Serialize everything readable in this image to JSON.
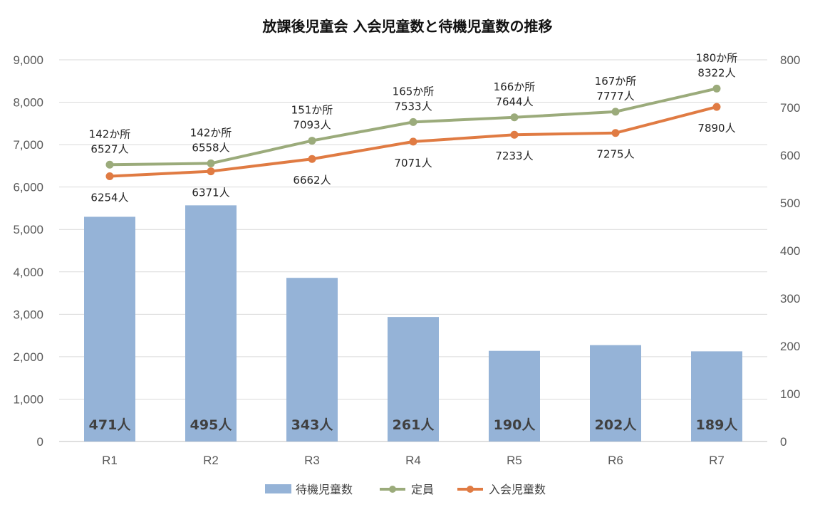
{
  "chart_data": {
    "type": "bar",
    "title": "放課後児童会 入会児童数と待機児童数の推移",
    "categories": [
      "R1",
      "R2",
      "R3",
      "R4",
      "R5",
      "R6",
      "R7"
    ],
    "y_left": {
      "ticks": [
        "0",
        "1,000",
        "2,000",
        "3,000",
        "4,000",
        "5,000",
        "6,000",
        "7,000",
        "8,000",
        "9,000"
      ],
      "ylim": [
        0,
        9000
      ]
    },
    "y_right": {
      "ticks": [
        "0",
        "100",
        "200",
        "300",
        "400",
        "500",
        "600",
        "700",
        "800"
      ],
      "ylim": [
        0,
        800
      ]
    },
    "grid": true,
    "legend_position": "bottom",
    "series": [
      {
        "name": "待機児童数",
        "kind": "bar",
        "axis": "right",
        "color": "#95b3d7",
        "values": [
          471,
          495,
          343,
          261,
          190,
          202,
          189
        ],
        "labels": [
          "471人",
          "495人",
          "343人",
          "261人",
          "190人",
          "202人",
          "189人"
        ]
      },
      {
        "name": "定員",
        "kind": "line",
        "axis": "left",
        "color": "#9bab7b",
        "values": [
          6527,
          6558,
          7093,
          7533,
          7644,
          7777,
          8322
        ],
        "sites": [
          "142か所",
          "142か所",
          "151か所",
          "165か所",
          "166か所",
          "167か所",
          "180か所"
        ],
        "labels": [
          "6527人",
          "6558人",
          "7093人",
          "7533人",
          "7644人",
          "7777人",
          "8322人"
        ]
      },
      {
        "name": "入会児童数",
        "kind": "line",
        "axis": "left",
        "color": "#e07b43",
        "values": [
          6254,
          6371,
          6662,
          7071,
          7233,
          7275,
          7890
        ],
        "labels": [
          "6254人",
          "6371人",
          "6662人",
          "7071人",
          "7233人",
          "7275人",
          "7890人"
        ]
      }
    ]
  }
}
